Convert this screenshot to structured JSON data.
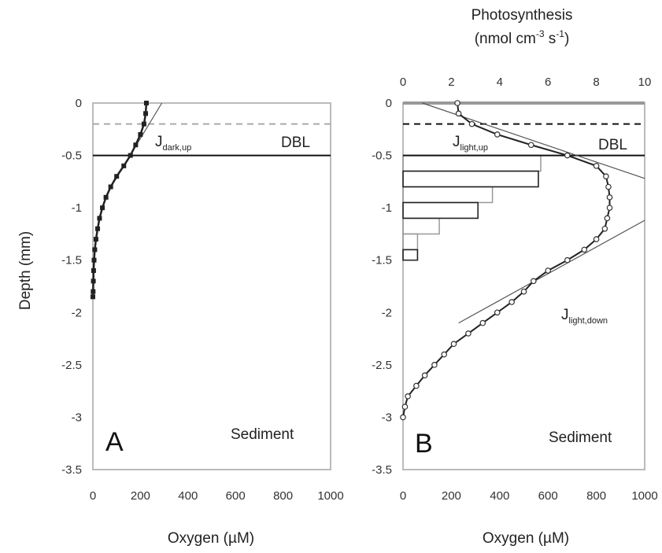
{
  "chart_data": [
    {
      "type": "line",
      "panel_label": "A",
      "xlabel": "Oxygen (µM)",
      "ylabel": "Depth (mm)",
      "xlim": [
        0,
        1000
      ],
      "ylim": [
        -3.5,
        0
      ],
      "x_ticks": [
        "0",
        "200",
        "400",
        "600",
        "800",
        "1000"
      ],
      "y_ticks": [
        "0",
        "-0.5",
        "-1",
        "-1.5",
        "-2",
        "-2.5",
        "-3",
        "-3.5"
      ],
      "annotations": {
        "flux_label": "J",
        "flux_sub": "dark,up",
        "dbl_label": "DBL",
        "region_label": "Sediment"
      },
      "dbl_top_depth": -0.2,
      "sediment_surface_depth": -0.5,
      "series": [
        {
          "marker": "filled-square",
          "depth": [
            0,
            -0.1,
            -0.2,
            -0.3,
            -0.4,
            -0.5,
            -0.6,
            -0.7,
            -0.8,
            -0.9,
            -1.0,
            -1.1,
            -1.2,
            -1.3,
            -1.4,
            -1.5,
            -1.6,
            -1.7,
            -1.8,
            -1.85
          ],
          "oxygen": [
            225,
            222,
            215,
            200,
            180,
            158,
            130,
            100,
            75,
            55,
            40,
            28,
            20,
            13,
            8,
            5,
            3,
            2,
            1,
            0
          ]
        }
      ],
      "fit_line": {
        "oxygen": [
          290,
          90
        ],
        "depth": [
          0,
          -0.75
        ]
      }
    },
    {
      "type": "line",
      "panel_label": "B",
      "xlabel": "Oxygen (µM)",
      "ylabel": "",
      "top_axis_title_line1": "Photosynthesis",
      "top_axis_title_line2": "(nmol cm",
      "top_axis_title_sup1": "-3",
      "top_axis_title_mid": " s",
      "top_axis_title_sup2": "-1",
      "top_axis_title_end": ")",
      "xlim": [
        0,
        1000
      ],
      "x2lim": [
        0,
        10
      ],
      "ylim": [
        -3.5,
        0
      ],
      "x_ticks": [
        "0",
        "200",
        "400",
        "600",
        "800",
        "1000"
      ],
      "x2_ticks": [
        "0",
        "2",
        "4",
        "6",
        "8",
        "10"
      ],
      "y_ticks": [
        "0",
        "-0.5",
        "-1",
        "-1.5",
        "-2",
        "-2.5",
        "-3",
        "-3.5"
      ],
      "annotations": {
        "flux_up_label": "J",
        "flux_up_sub": "light,up",
        "flux_down_label": "J",
        "flux_down_sub": "light,down",
        "dbl_label": "DBL",
        "region_label": "Sediment"
      },
      "dbl_top_depth": -0.2,
      "sediment_surface_depth": -0.5,
      "series": [
        {
          "marker": "open-circle",
          "depth": [
            0,
            -0.1,
            -0.2,
            -0.3,
            -0.4,
            -0.5,
            -0.6,
            -0.7,
            -0.8,
            -0.9,
            -1.0,
            -1.1,
            -1.2,
            -1.3,
            -1.4,
            -1.5,
            -1.6,
            -1.7,
            -1.8,
            -1.9,
            -2.0,
            -2.1,
            -2.2,
            -2.3,
            -2.4,
            -2.5,
            -2.6,
            -2.7,
            -2.8,
            -2.9,
            -3.0
          ],
          "oxygen": [
            225,
            230,
            285,
            390,
            530,
            680,
            800,
            840,
            850,
            855,
            855,
            845,
            835,
            800,
            750,
            680,
            600,
            540,
            500,
            450,
            390,
            330,
            270,
            210,
            170,
            130,
            90,
            55,
            20,
            8,
            0
          ]
        }
      ],
      "fit_lines": [
        {
          "oxygen": [
            80,
            1000
          ],
          "depth": [
            0,
            -0.72
          ]
        },
        {
          "oxygen": [
            1000,
            230
          ],
          "depth": [
            -1.12,
            -2.1
          ]
        }
      ],
      "photosynthesis_bars": {
        "depth_top": [
          -0.5,
          -0.65,
          -0.8,
          -0.95,
          -1.1,
          -1.25,
          -1.4
        ],
        "depth_bottom": [
          -0.65,
          -0.8,
          -0.95,
          -1.1,
          -1.25,
          -1.4,
          -1.5
        ],
        "rate_grey": [
          5.7,
          5.6,
          3.7,
          3.1,
          1.5,
          0.6,
          0.6
        ],
        "rate_black": [
          5.7,
          5.6,
          3.7,
          3.1,
          1.5,
          0.6,
          0.6
        ]
      }
    }
  ]
}
